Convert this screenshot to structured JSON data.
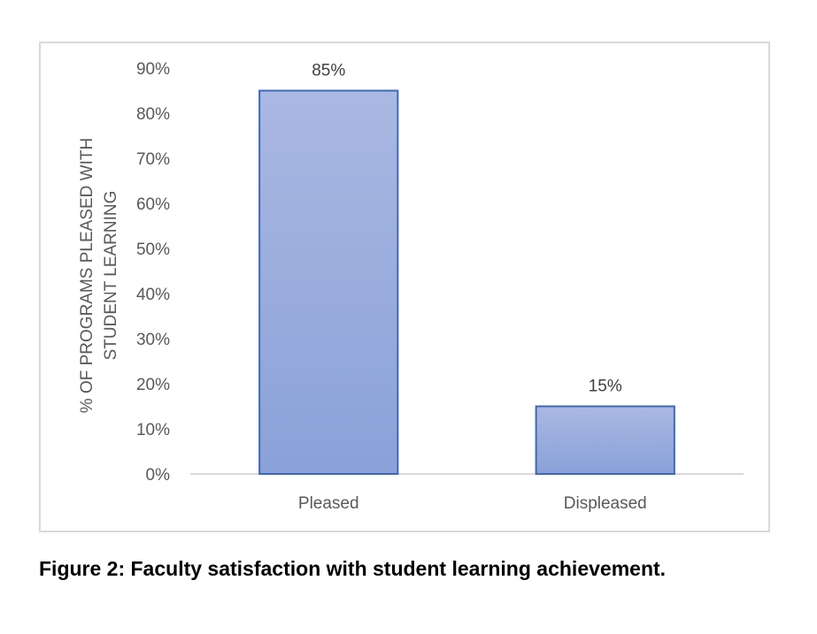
{
  "caption": "Figure 2: Faculty satisfaction with student learning achievement.",
  "chart_data": {
    "type": "bar",
    "categories": [
      "Pleased",
      "Displeased"
    ],
    "values": [
      85,
      15
    ],
    "data_labels": [
      "85%",
      "15%"
    ],
    "ylabel_lines": [
      "% OF PROGRAMS PLEASED WITH",
      "STUDENT LEARNING"
    ],
    "xlabel": "",
    "ylim": [
      0,
      90
    ],
    "yticks": [
      0,
      10,
      20,
      30,
      40,
      50,
      60,
      70,
      80,
      90
    ],
    "ytick_labels": [
      "0%",
      "10%",
      "20%",
      "30%",
      "40%",
      "50%",
      "60%",
      "70%",
      "80%",
      "90%"
    ],
    "grid": false,
    "legend": "none",
    "colors": {
      "bar_fill_top": "#aab8e2",
      "bar_fill_bottom": "#8aa1d8",
      "bar_stroke": "#3f68b8",
      "axis_line": "#d9d9d9",
      "text": "#595959"
    }
  }
}
